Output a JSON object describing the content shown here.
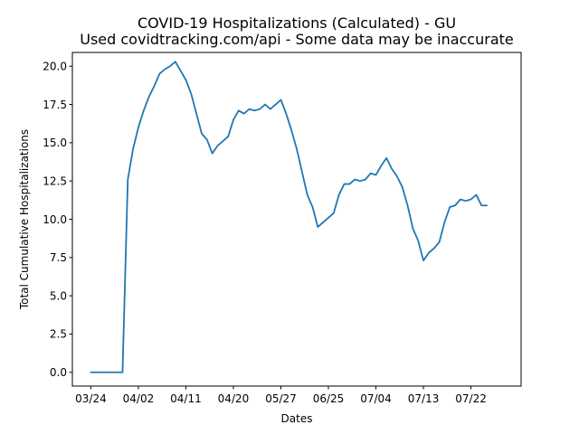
{
  "chart_data": {
    "type": "line",
    "title": "COVID-19 Hospitalizations (Calculated) - GU",
    "subtitle": "Used covidtracking.com/api - Some data may be inaccurate",
    "xlabel": "Dates",
    "ylabel": "Total Cumulative Hospitalizations",
    "ylim": [
      -0.9,
      20.9
    ],
    "xlim": [
      -3.5,
      81.5
    ],
    "yticks": [
      0.0,
      2.5,
      5.0,
      7.5,
      10.0,
      12.5,
      15.0,
      17.5,
      20.0
    ],
    "ytick_labels": [
      "0.0",
      "2.5",
      "5.0",
      "7.5",
      "10.0",
      "12.5",
      "15.0",
      "17.5",
      "20.0"
    ],
    "xticks": [
      0,
      9,
      18,
      27,
      36,
      45,
      54,
      63,
      72
    ],
    "xtick_labels": [
      "03/24",
      "04/02",
      "04/11",
      "04/20",
      "05/27",
      "06/25",
      "07/04",
      "07/13",
      "07/22"
    ],
    "grid": false,
    "color": "#1f77b4",
    "series": [
      {
        "name": "Hospitalizations",
        "x": [
          0,
          1,
          2,
          3,
          4,
          5,
          6,
          7,
          8,
          9,
          10,
          11,
          12,
          13,
          14,
          15,
          16,
          17,
          18,
          19,
          20,
          21,
          22,
          23,
          24,
          25,
          26,
          27,
          28,
          29,
          30,
          31,
          32,
          33,
          34,
          35,
          36,
          37,
          38,
          39,
          40,
          41,
          42,
          43,
          44,
          45,
          46,
          47,
          48,
          49,
          50,
          51,
          52,
          53,
          54,
          55,
          56,
          57,
          58,
          59,
          60,
          61,
          62,
          63,
          64,
          65,
          66,
          67,
          68,
          69,
          70,
          71,
          72,
          73,
          74,
          75
        ],
        "values": [
          0,
          0,
          0,
          0,
          0,
          0,
          0,
          12.6,
          14.6,
          16.0,
          17.1,
          18.0,
          18.7,
          19.5,
          19.8,
          20.0,
          20.3,
          19.7,
          19.1,
          18.2,
          16.9,
          15.6,
          15.2,
          14.3,
          14.8,
          15.1,
          15.4,
          16.5,
          17.1,
          16.9,
          17.2,
          17.1,
          17.2,
          17.5,
          17.2,
          17.5,
          17.8,
          16.9,
          15.8,
          14.6,
          13.1,
          11.6,
          10.8,
          9.5,
          9.8,
          10.1,
          10.4,
          11.6,
          12.3,
          12.3,
          12.6,
          12.5,
          12.6,
          13.0,
          12.9,
          13.5,
          14.0,
          13.3,
          12.8,
          12.1,
          10.9,
          9.4,
          8.6,
          7.3,
          7.8,
          8.1,
          8.5,
          9.8,
          10.8,
          10.9,
          11.3,
          11.2,
          11.3,
          11.6,
          10.9,
          10.9
        ]
      }
    ]
  }
}
